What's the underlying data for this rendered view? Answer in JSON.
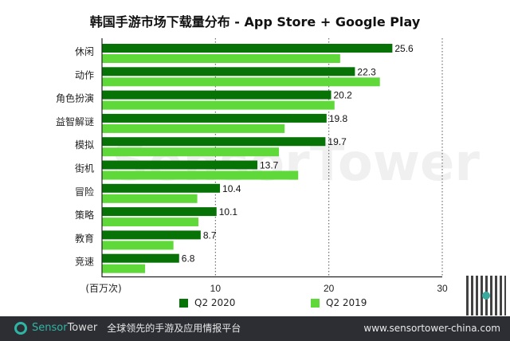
{
  "chart_data": {
    "type": "bar",
    "orientation": "horizontal",
    "title": "韩国手游市场下载量分布 - App Store + Google Play",
    "xlabel": "(百万次)",
    "categories": [
      "休闲",
      "动作",
      "角色扮演",
      "益智解谜",
      "模拟",
      "街机",
      "冒险",
      "策略",
      "教育",
      "竞速"
    ],
    "series": [
      {
        "name": "Q2 2020",
        "color": "#077307",
        "values": [
          25.6,
          22.3,
          20.2,
          19.8,
          19.7,
          13.7,
          10.4,
          10.1,
          8.7,
          6.8
        ],
        "labels": [
          "25.6",
          "22.3",
          "20.2",
          "19.8",
          "19.7",
          "13.7",
          "10.4",
          "10.1",
          "8.7",
          "6.8"
        ]
      },
      {
        "name": "Q2 2019",
        "color": "#5fd83a",
        "values": [
          21.0,
          24.5,
          20.5,
          16.1,
          15.6,
          17.3,
          8.4,
          8.5,
          6.3,
          3.8
        ]
      }
    ],
    "xlim": [
      0,
      30
    ],
    "xticks": [
      "10",
      "20",
      "30"
    ],
    "grid": "vertical dotted",
    "legend": "bottom"
  },
  "watermark": "SensorTower",
  "footer": {
    "brand_a": "Sensor",
    "brand_b": "Tower",
    "slogan": "全球领先的手游及应用情报平台",
    "url": "www.sensortower-china.com"
  }
}
